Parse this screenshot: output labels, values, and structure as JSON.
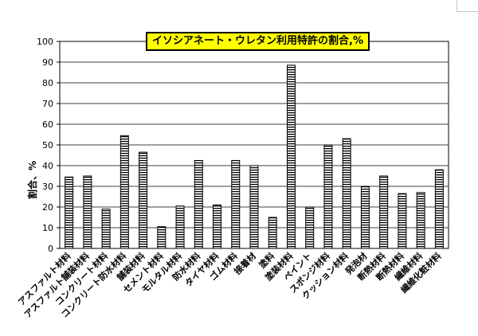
{
  "chart_data": {
    "type": "bar",
    "title": "イソシアネート・ウレタン利用特許の割合,%",
    "ylabel": "割合、%",
    "xlabel": "",
    "ylim": [
      0,
      100
    ],
    "yticks": [
      0,
      10,
      20,
      30,
      40,
      50,
      60,
      70,
      80,
      90,
      100
    ],
    "grid": true,
    "categories": [
      "アスファルト材料",
      "アスファルト舗装材料",
      "コンクリート材料",
      "コンクリート防水材料",
      "舗装材料",
      "セメント材料",
      "モルタル材料",
      "防水材料",
      "タイヤ材料",
      "ゴム材料",
      "接着材",
      "塗料",
      "塗装材料",
      "ペイント",
      "スポンジ材料",
      "クッション材料",
      "発泡材",
      "断熱材料",
      "断熱材料",
      "繊維材料",
      "繊維化粧材料"
    ],
    "values": [
      34.5,
      35,
      19,
      54.5,
      46.5,
      10.5,
      20.5,
      42.5,
      21,
      42.5,
      40,
      15,
      88.5,
      20,
      50,
      53,
      30,
      35,
      26.5,
      27,
      38
    ],
    "bar_color": "#000000",
    "bar_fill": "#ffffff"
  }
}
